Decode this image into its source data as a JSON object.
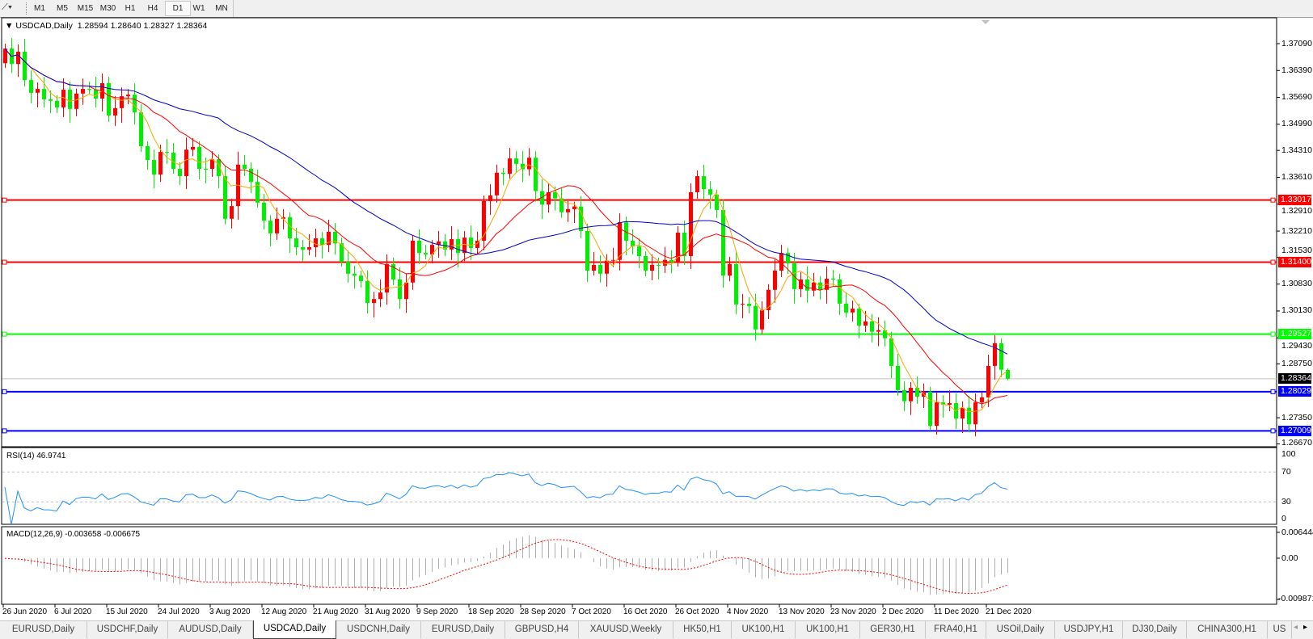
{
  "toolbar": {
    "timeframes": [
      "M1",
      "M5",
      "M15",
      "M30",
      "H1",
      "H4",
      "D1",
      "W1",
      "MN"
    ],
    "active_timeframe": "D1",
    "draw_icon": "line-tool-icon"
  },
  "header": {
    "symbol": "USDCAD,Daily",
    "ohlc": "1.28594 1.28640 1.28327 1.28364"
  },
  "rsi": {
    "label": "RSI(14) 46.9741",
    "ticks": [
      "100",
      "70",
      "30",
      "0"
    ]
  },
  "macd": {
    "label": "MACD(12,26,9) -0.003658 -0.006675",
    "ticks": [
      "0.006444",
      "0.00",
      "-0.009871"
    ]
  },
  "price_axis": {
    "ticks": [
      "1.37090",
      "1.36390",
      "1.35690",
      "1.34990",
      "1.34310",
      "1.33610",
      "1.32910",
      "1.32210",
      "1.31530",
      "1.30830",
      "1.30130",
      "1.29430",
      "1.28750",
      "1.27350",
      "1.26670"
    ]
  },
  "levels": [
    {
      "price": "1.33017",
      "color": "#ff0000"
    },
    {
      "price": "1.31400",
      "color": "#ff0000"
    },
    {
      "price": "1.29527",
      "color": "#00ff00"
    },
    {
      "price": "1.28029",
      "color": "#0000ff"
    },
    {
      "price": "1.27009",
      "color": "#0000ff"
    }
  ],
  "current_price": {
    "price": "1.28364",
    "color": "#000000"
  },
  "colors": {
    "bull": "#ff0000",
    "bear": "#00ee00",
    "ma_fast": "#ffa500",
    "ma_mid": "#ff0000",
    "ma_slow": "#0000cc",
    "rsi": "#1e90ff",
    "macd_hist": "#b0b0b0",
    "macd_signal": "#ff0000"
  },
  "date_labels": [
    "26 Jun 2020",
    "6 Jul 2020",
    "15 Jul 2020",
    "24 Jul 2020",
    "3 Aug 2020",
    "12 Aug 2020",
    "21 Aug 2020",
    "31 Aug 2020",
    "9 Sep 2020",
    "18 Sep 2020",
    "28 Sep 2020",
    "7 Oct 2020",
    "16 Oct 2020",
    "26 Oct 2020",
    "4 Nov 2020",
    "13 Nov 2020",
    "23 Nov 2020",
    "2 Dec 2020",
    "11 Dec 2020",
    "21 Dec 2020"
  ],
  "chart_data": {
    "type": "candlestick",
    "symbol": "USDCAD",
    "timeframe": "Daily",
    "ylim": [
      1.2667,
      1.374
    ],
    "first_open": 1.3658,
    "last_bar": {
      "open": 1.28594,
      "high": 1.2864,
      "low": 1.28327,
      "close": 1.28364
    },
    "close": [
      1.3696,
      1.3656,
      1.3688,
      1.3614,
      1.3581,
      1.3591,
      1.3564,
      1.356,
      1.3543,
      1.3589,
      1.3539,
      1.3579,
      1.3591,
      1.3589,
      1.3566,
      1.3606,
      1.3522,
      1.3541,
      1.3572,
      1.3576,
      1.353,
      1.3442,
      1.3406,
      1.3368,
      1.3427,
      1.3425,
      1.3383,
      1.3364,
      1.3433,
      1.344,
      1.3383,
      1.3383,
      1.3408,
      1.3364,
      1.3253,
      1.3286,
      1.3394,
      1.3383,
      1.3349,
      1.3295,
      1.3248,
      1.3215,
      1.3253,
      1.3257,
      1.3202,
      1.3179,
      1.3173,
      1.3179,
      1.3202,
      1.3185,
      1.3219,
      1.3189,
      1.3141,
      1.311,
      1.3105,
      1.3091,
      1.3034,
      1.3044,
      1.3061,
      1.3135,
      1.3095,
      1.3044,
      1.3087,
      1.3196,
      1.3164,
      1.316,
      1.3185,
      1.3194,
      1.3173,
      1.32,
      1.3164,
      1.3204,
      1.3177,
      1.3196,
      1.3299,
      1.3314,
      1.3373,
      1.337,
      1.341,
      1.3396,
      1.3382,
      1.3412,
      1.3325,
      1.329,
      1.3322,
      1.3306,
      1.327,
      1.3278,
      1.3285,
      1.3221,
      1.3118,
      1.3133,
      1.311,
      1.3144,
      1.3146,
      1.3244,
      1.3196,
      1.3181,
      1.3156,
      1.3118,
      1.3133,
      1.3131,
      1.3146,
      1.3141,
      1.3217,
      1.3156,
      1.3322,
      1.3364,
      1.333,
      1.3316,
      1.3276,
      1.3105,
      1.3135,
      1.303,
      1.3032,
      1.3026,
      1.2965,
      1.3015,
      1.3068,
      1.3118,
      1.3164,
      1.3137,
      1.307,
      1.3095,
      1.3066,
      1.3087,
      1.3068,
      1.3097,
      1.3095,
      1.3032,
      1.3009,
      1.3019,
      1.2975,
      1.2986,
      1.2959,
      1.2963,
      1.2942,
      1.287,
      1.2807,
      1.2778,
      1.2813,
      1.279,
      1.2803,
      1.2714,
      1.2775,
      1.2769,
      1.2773,
      1.2733,
      1.2761,
      1.2718,
      1.2775,
      1.2788,
      1.287,
      1.2929,
      1.286,
      1.28364
    ],
    "indicators": [
      "RSI(14)",
      "MACD(12,26,9)"
    ],
    "grid": false
  },
  "tabs": [
    {
      "label": "EURUSD,Daily"
    },
    {
      "label": "USDCHF,Daily"
    },
    {
      "label": "AUDUSD,Daily"
    },
    {
      "label": "USDCAD,Daily",
      "active": true
    },
    {
      "label": "USDCNH,Daily"
    },
    {
      "label": "EURUSD,Daily"
    },
    {
      "label": "GBPUSD,H4"
    },
    {
      "label": "XAUUSD,Weekly"
    },
    {
      "label": "HK50,H1"
    },
    {
      "label": "UK100,H1"
    },
    {
      "label": "UK100,H1"
    },
    {
      "label": "GER30,H1"
    },
    {
      "label": "FRA40,H1"
    },
    {
      "label": "USOil,Daily"
    },
    {
      "label": "USDJPY,H1"
    },
    {
      "label": "DJ30,Daily"
    },
    {
      "label": "CHINA300,H1"
    },
    {
      "label": "US"
    }
  ]
}
